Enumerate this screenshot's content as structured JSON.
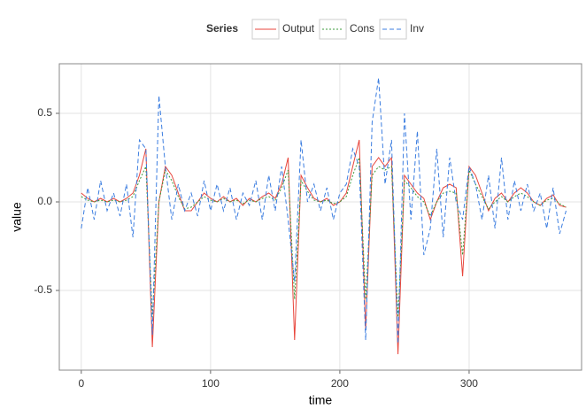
{
  "chart_data": {
    "type": "line",
    "legend_title": "Series",
    "x_label": "time",
    "y_label": "value",
    "xlim": [
      -17,
      387
    ],
    "ylim": [
      -0.95,
      0.78
    ],
    "xticks": [
      0,
      100,
      200,
      300
    ],
    "yticks": [
      -0.5,
      {
        "value": 0,
        "label": "0.0"
      },
      0.5
    ],
    "grid": true,
    "legend_position": "top",
    "x": [
      0,
      5,
      10,
      15,
      20,
      25,
      30,
      35,
      40,
      45,
      50,
      55,
      60,
      65,
      70,
      75,
      80,
      85,
      90,
      95,
      100,
      105,
      110,
      115,
      120,
      125,
      130,
      135,
      140,
      145,
      150,
      155,
      160,
      165,
      170,
      175,
      180,
      185,
      190,
      195,
      200,
      205,
      210,
      215,
      220,
      225,
      230,
      235,
      240,
      245,
      250,
      255,
      260,
      265,
      270,
      275,
      280,
      285,
      290,
      295,
      300,
      305,
      310,
      315,
      320,
      325,
      330,
      335,
      340,
      345,
      350,
      355,
      360,
      365,
      370,
      375
    ],
    "series": [
      {
        "name": "Output",
        "color": "#e8463c",
        "linetype": "solid",
        "values": [
          0.05,
          0.02,
          0.0,
          0.02,
          0.0,
          0.02,
          0.0,
          0.02,
          0.05,
          0.15,
          0.3,
          -0.82,
          0.0,
          0.2,
          0.15,
          0.05,
          -0.05,
          -0.05,
          0.0,
          0.05,
          0.02,
          0.0,
          0.03,
          0.0,
          0.02,
          -0.02,
          0.02,
          0.0,
          0.03,
          0.05,
          0.02,
          0.1,
          0.25,
          -0.78,
          0.15,
          0.08,
          0.02,
          0.0,
          0.02,
          -0.02,
          0.0,
          0.05,
          0.2,
          0.35,
          -0.72,
          0.2,
          0.25,
          0.2,
          0.25,
          -0.86,
          0.15,
          0.1,
          0.05,
          0.02,
          -0.1,
          0.0,
          0.08,
          0.1,
          0.08,
          -0.42,
          0.2,
          0.15,
          0.05,
          -0.05,
          0.02,
          0.05,
          0.0,
          0.05,
          0.08,
          0.05,
          0.0,
          -0.02,
          0.02,
          0.04,
          -0.02,
          -0.03
        ]
      },
      {
        "name": "Cons",
        "color": "#3a9a3a",
        "linetype": "dotted",
        "values": [
          0.03,
          0.01,
          0.0,
          0.01,
          0.0,
          0.01,
          0.0,
          0.01,
          0.03,
          0.12,
          0.2,
          -0.65,
          0.0,
          0.18,
          0.12,
          0.03,
          -0.04,
          -0.03,
          0.0,
          0.03,
          0.01,
          0.0,
          0.02,
          0.0,
          0.01,
          -0.01,
          0.01,
          0.0,
          0.02,
          0.03,
          0.01,
          0.08,
          0.18,
          -0.55,
          0.12,
          0.06,
          0.01,
          0.0,
          0.01,
          -0.01,
          0.0,
          0.03,
          0.15,
          0.25,
          -0.55,
          0.15,
          0.2,
          0.18,
          0.2,
          -0.65,
          0.12,
          0.08,
          0.03,
          0.0,
          -0.08,
          0.0,
          0.05,
          0.06,
          0.05,
          -0.3,
          0.18,
          0.1,
          0.03,
          -0.04,
          0.0,
          0.03,
          0.0,
          0.03,
          0.05,
          0.03,
          0.0,
          -0.02,
          0.01,
          0.02,
          -0.01,
          -0.03
        ]
      },
      {
        "name": "Inv",
        "color": "#3b7de0",
        "linetype": "dashed",
        "values": [
          -0.15,
          0.08,
          -0.1,
          0.12,
          -0.05,
          0.05,
          -0.08,
          0.1,
          -0.2,
          0.35,
          0.3,
          -0.75,
          0.6,
          0.2,
          -0.1,
          0.1,
          -0.05,
          0.05,
          -0.08,
          0.12,
          -0.05,
          0.1,
          -0.05,
          0.08,
          -0.1,
          0.05,
          -0.02,
          0.12,
          -0.1,
          0.15,
          -0.05,
          0.2,
          -0.1,
          -0.45,
          0.35,
          0.0,
          0.1,
          -0.05,
          0.08,
          -0.1,
          0.05,
          0.1,
          0.3,
          0.2,
          -0.78,
          0.45,
          0.7,
          0.1,
          0.35,
          -0.8,
          0.5,
          -0.1,
          0.4,
          -0.3,
          -0.15,
          0.3,
          -0.2,
          0.25,
          0.0,
          -0.1,
          0.2,
          0.1,
          -0.1,
          0.15,
          -0.15,
          0.25,
          -0.1,
          0.12,
          -0.05,
          0.1,
          -0.05,
          0.05,
          -0.15,
          0.08,
          -0.18,
          -0.05
        ]
      }
    ]
  }
}
